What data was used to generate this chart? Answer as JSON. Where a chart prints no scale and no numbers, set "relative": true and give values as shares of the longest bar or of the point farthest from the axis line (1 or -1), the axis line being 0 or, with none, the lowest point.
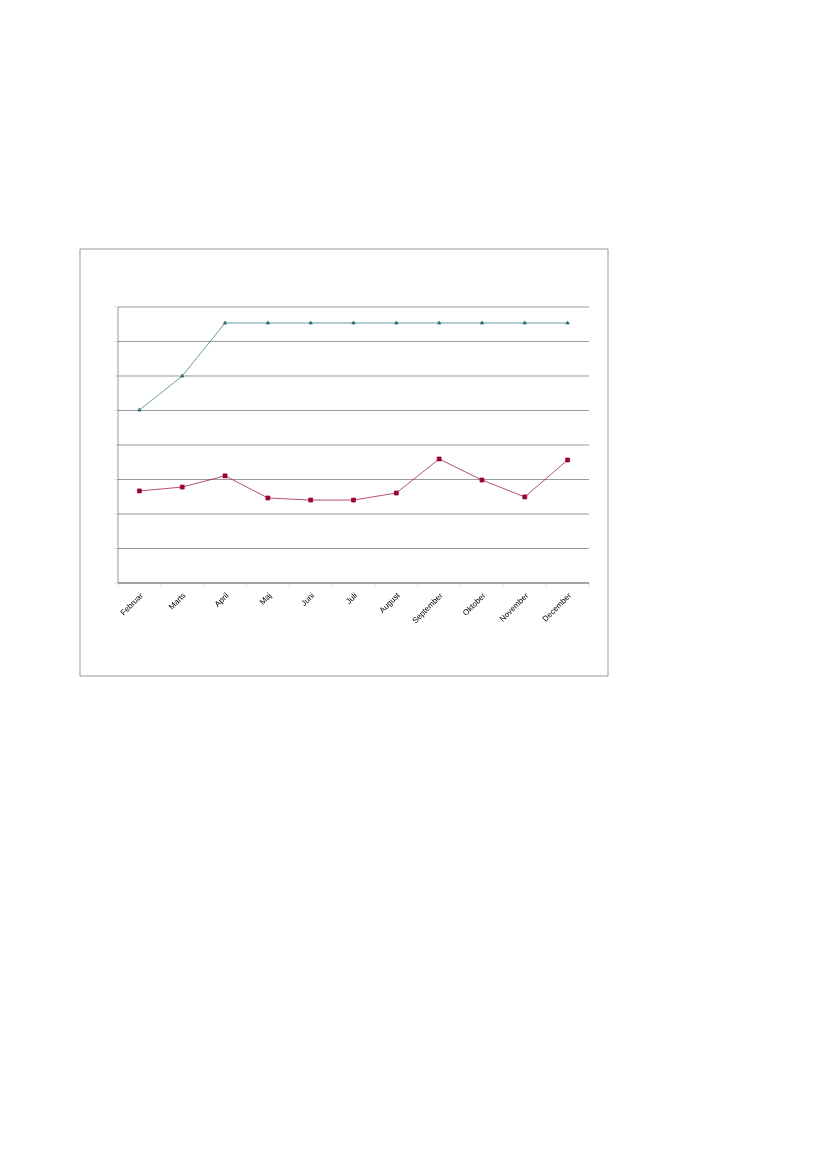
{
  "chart_data": {
    "type": "line",
    "relative": true,
    "categories": [
      "Februar",
      "Marts",
      "April",
      "Maj",
      "Juni",
      "Juli",
      "August",
      "September",
      "Oktober",
      "November",
      "December"
    ],
    "series": [
      {
        "color": "#2e6b7a",
        "marker": "triangle",
        "values": [
          0.665,
          0.796,
          1,
          1,
          1,
          1,
          1,
          1,
          1,
          1,
          1
        ]
      },
      {
        "color": "#99003d",
        "marker": "square",
        "values": [
          0.354,
          0.369,
          0.412,
          0.327,
          0.319,
          0.319,
          0.346,
          0.477,
          0.396,
          0.331,
          0.473
        ]
      }
    ],
    "grid": "y",
    "line_style": "solid"
  }
}
